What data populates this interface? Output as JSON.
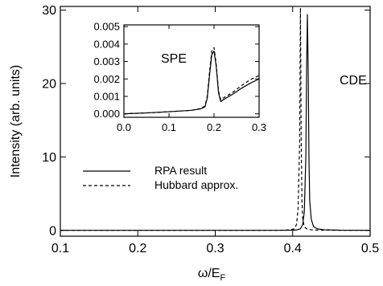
{
  "chart_data": [
    {
      "type": "line",
      "xlabel": "ω/E",
      "xlabel_sub": "F",
      "ylabel": "Intensity (arb. units)",
      "xlim": [
        0.1,
        0.5
      ],
      "ylim": [
        -0.8,
        30.5
      ],
      "xticks": [
        "0.1",
        "0.2",
        "0.3",
        "0.4",
        "0.5"
      ],
      "yticks": [
        "0",
        "10",
        "20",
        "30"
      ],
      "annotations": [
        "CDE"
      ],
      "grid": false,
      "legend_position": "middle-left",
      "series": [
        {
          "name": "RPA result",
          "style": "solid",
          "x": [
            0.1,
            0.3,
            0.38,
            0.4,
            0.405,
            0.41,
            0.413,
            0.415,
            0.417,
            0.418,
            0.419,
            0.42,
            0.421,
            0.422,
            0.424,
            0.427,
            0.432,
            0.44,
            0.46,
            0.5
          ],
          "y": [
            0,
            0,
            0,
            0.02,
            0.05,
            0.2,
            0.8,
            2.5,
            10,
            22,
            29.4,
            22,
            10,
            4,
            1.5,
            0.5,
            0.2,
            0.08,
            0.02,
            0
          ]
        },
        {
          "name": "Hubbard approx.",
          "style": "dashed",
          "x": [
            0.1,
            0.3,
            0.38,
            0.395,
            0.402,
            0.405,
            0.407,
            0.409,
            0.41,
            0.411,
            0.412,
            0.413,
            0.415,
            0.418,
            0.423,
            0.43,
            0.45,
            0.5
          ],
          "y": [
            0,
            0,
            0,
            0.05,
            0.2,
            0.8,
            3,
            12,
            30.3,
            12,
            4,
            1.5,
            0.5,
            0.2,
            0.08,
            0.03,
            0.01,
            0
          ]
        }
      ]
    },
    {
      "type": "line",
      "xlim": [
        0.0,
        0.3
      ],
      "ylim": [
        -0.0002,
        0.0051
      ],
      "xticks": [
        "0.0",
        "0.1",
        "0.2",
        "0.3"
      ],
      "yticks": [
        "0.000",
        "0.001",
        "0.002",
        "0.003",
        "0.004",
        "0.005"
      ],
      "annotations": [
        "SPE"
      ],
      "series": [
        {
          "name": "RPA result",
          "style": "solid",
          "x": [
            0.0,
            0.05,
            0.1,
            0.15,
            0.17,
            0.18,
            0.185,
            0.19,
            0.195,
            0.2,
            0.205,
            0.21,
            0.215,
            0.22,
            0.24,
            0.26,
            0.28,
            0.3
          ],
          "y": [
            0,
            5e-05,
            0.00012,
            0.0002,
            0.00028,
            0.0004,
            0.0009,
            0.0022,
            0.0034,
            0.0036,
            0.0027,
            0.0012,
            0.0007,
            0.0008,
            0.0011,
            0.00145,
            0.00175,
            0.002
          ]
        },
        {
          "name": "Hubbard approx.",
          "style": "dashed",
          "x": [
            0.0,
            0.05,
            0.1,
            0.15,
            0.17,
            0.18,
            0.185,
            0.19,
            0.195,
            0.2,
            0.205,
            0.21,
            0.215,
            0.22,
            0.24,
            0.26,
            0.28,
            0.3
          ],
          "y": [
            0,
            5e-05,
            0.00012,
            0.0002,
            0.0003,
            0.00045,
            0.001,
            0.0024,
            0.0036,
            0.0038,
            0.0028,
            0.0013,
            0.0008,
            0.0009,
            0.0012,
            0.0016,
            0.00195,
            0.0022
          ]
        }
      ]
    }
  ]
}
